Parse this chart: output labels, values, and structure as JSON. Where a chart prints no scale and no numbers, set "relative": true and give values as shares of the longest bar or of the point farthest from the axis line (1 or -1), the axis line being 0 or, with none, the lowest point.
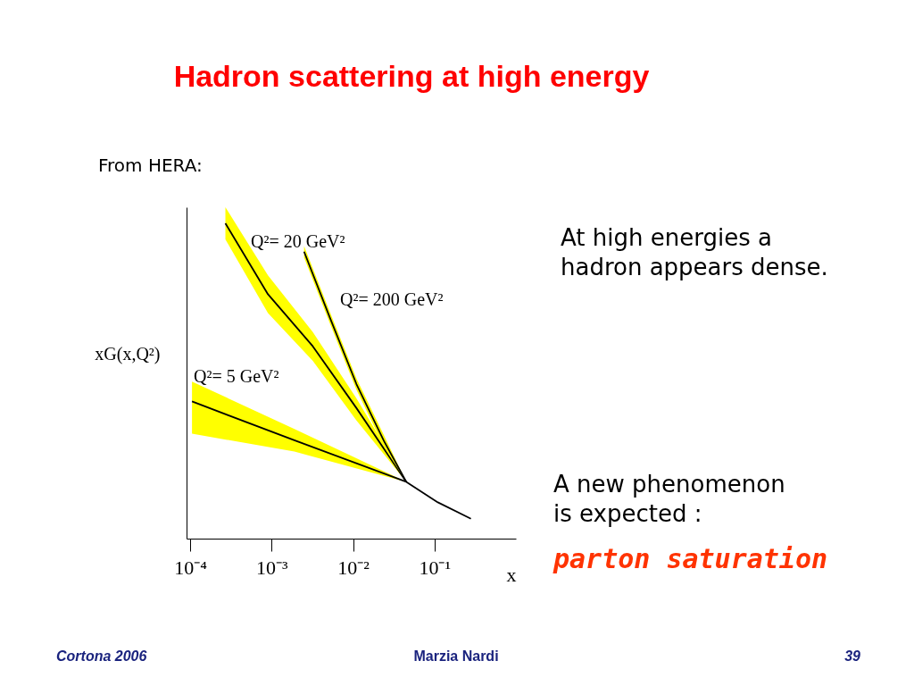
{
  "chart_data": {
    "type": "line",
    "title": "Hadron scattering at high energy",
    "subtitle": "From HERA:",
    "xlabel": "x",
    "ylabel": "xG(x,Q²)",
    "relative": true,
    "log": "x",
    "grid": false,
    "tick_labels": "x",
    "xlim": [
      9e-05,
      1
    ],
    "xticks": [
      {
        "value": 0.0001,
        "label": "10⁻⁴"
      },
      {
        "value": 0.001,
        "label": "10⁻³"
      },
      {
        "value": 0.01,
        "label": "10⁻²"
      },
      {
        "value": 0.1,
        "label": "10⁻¹"
      }
    ],
    "series": [
      {
        "name": "Q²= 20 GeV²",
        "color": "#000000",
        "x": [
          0.00027,
          0.0009,
          0.0032,
          0.011,
          0.045
        ],
        "values": [
          1.0,
          0.775,
          0.61,
          0.414,
          0.18
        ],
        "upper": [
          1.051,
          0.835,
          0.655,
          0.445,
          0.18
        ],
        "lower": [
          0.949,
          0.715,
          0.564,
          0.375,
          0.18
        ]
      },
      {
        "name": "Q²= 200 GeV²",
        "color": "#000000",
        "x": [
          0.0025,
          0.0052,
          0.011,
          0.024,
          0.045
        ],
        "values": [
          0.91,
          0.7,
          0.49,
          0.309,
          0.18
        ],
        "upper": [
          0.928,
          0.718,
          0.508,
          0.327,
          0.18
        ],
        "lower": [
          0.892,
          0.682,
          0.472,
          0.291,
          0.18
        ]
      },
      {
        "name": "Q²= 5 GeV²",
        "color": "#000000",
        "x": [
          0.000105,
          0.0019,
          0.045,
          0.11,
          0.28
        ],
        "values": [
          0.435,
          0.312,
          0.18,
          0.115,
          0.063
        ],
        "upper": [
          0.498,
          0.348,
          0.18,
          0.115,
          0.063
        ],
        "lower": [
          0.333,
          0.276,
          0.18,
          0.115,
          0.063
        ]
      }
    ],
    "annotations": [
      "At high energies a\nhadron appears dense.",
      "A new phenomenon\nis expected :",
      "parton saturation",
      "Cortona 2006",
      "Marzia Nardi",
      "39"
    ]
  }
}
